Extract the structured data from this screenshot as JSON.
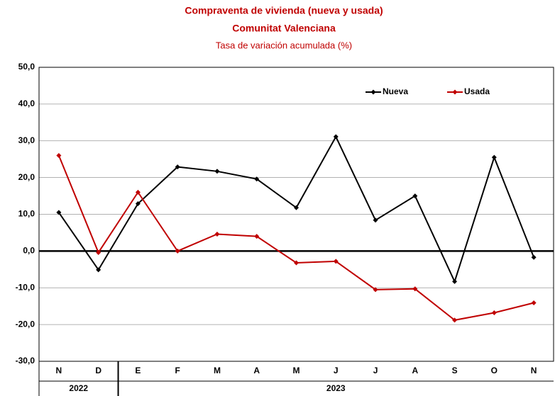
{
  "chart_data": {
    "type": "line",
    "title": "Compraventa de vivienda (nueva y usada)",
    "subtitle": "Comunitat Valenciana",
    "y_label": "Tasa de variación acumulada (%)",
    "categories": [
      "N",
      "D",
      "E",
      "F",
      "M",
      "A",
      "M",
      "J",
      "J",
      "A",
      "S",
      "O",
      "N"
    ],
    "year_labels": [
      "2022",
      "2023"
    ],
    "series": [
      {
        "name": "Nueva",
        "color": "#000000",
        "values": [
          10.5,
          -5.1,
          12.9,
          22.9,
          21.7,
          19.6,
          11.8,
          31.1,
          8.4,
          15.0,
          -8.3,
          25.5,
          -1.7
        ]
      },
      {
        "name": "Usada",
        "color": "#c00000",
        "values": [
          26.0,
          -0.4,
          16.0,
          0.0,
          4.6,
          4.0,
          -3.2,
          -2.8,
          -10.5,
          -10.3,
          -18.8,
          -16.8,
          -14.1
        ]
      }
    ],
    "ylim": [
      -30,
      50
    ],
    "yticks": [
      {
        "value": -30,
        "label": "-30,0"
      },
      {
        "value": -20,
        "label": "-20,0"
      },
      {
        "value": -10,
        "label": "-10,0"
      },
      {
        "value": 0,
        "label": "0,0"
      },
      {
        "value": 10,
        "label": "10,0"
      },
      {
        "value": 20,
        "label": "20,0"
      },
      {
        "value": 30,
        "label": "30,0"
      },
      {
        "value": 40,
        "label": "40,0"
      },
      {
        "value": 50,
        "label": "50,0"
      }
    ],
    "grid": true,
    "legend": "top-right"
  }
}
